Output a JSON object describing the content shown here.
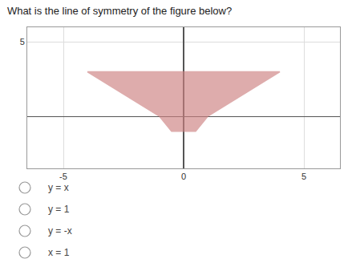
{
  "chart_data": {
    "type": "polygon",
    "title": "What is the line of symmetry of the figure below?",
    "x": [
      -4,
      4,
      1,
      0.5,
      -0.5,
      -1
    ],
    "values": [
      3,
      3,
      0,
      -1,
      -1,
      0
    ],
    "color": "#cd8080",
    "xlim": [
      -6.5,
      6.5
    ],
    "ylim": [
      -3.5,
      6
    ],
    "xticks": [
      -5,
      0,
      5
    ],
    "yticks": [
      5
    ],
    "grid": true,
    "annotations": [
      "y = x",
      "y = 1",
      "y = -x",
      "x = 1"
    ]
  }
}
